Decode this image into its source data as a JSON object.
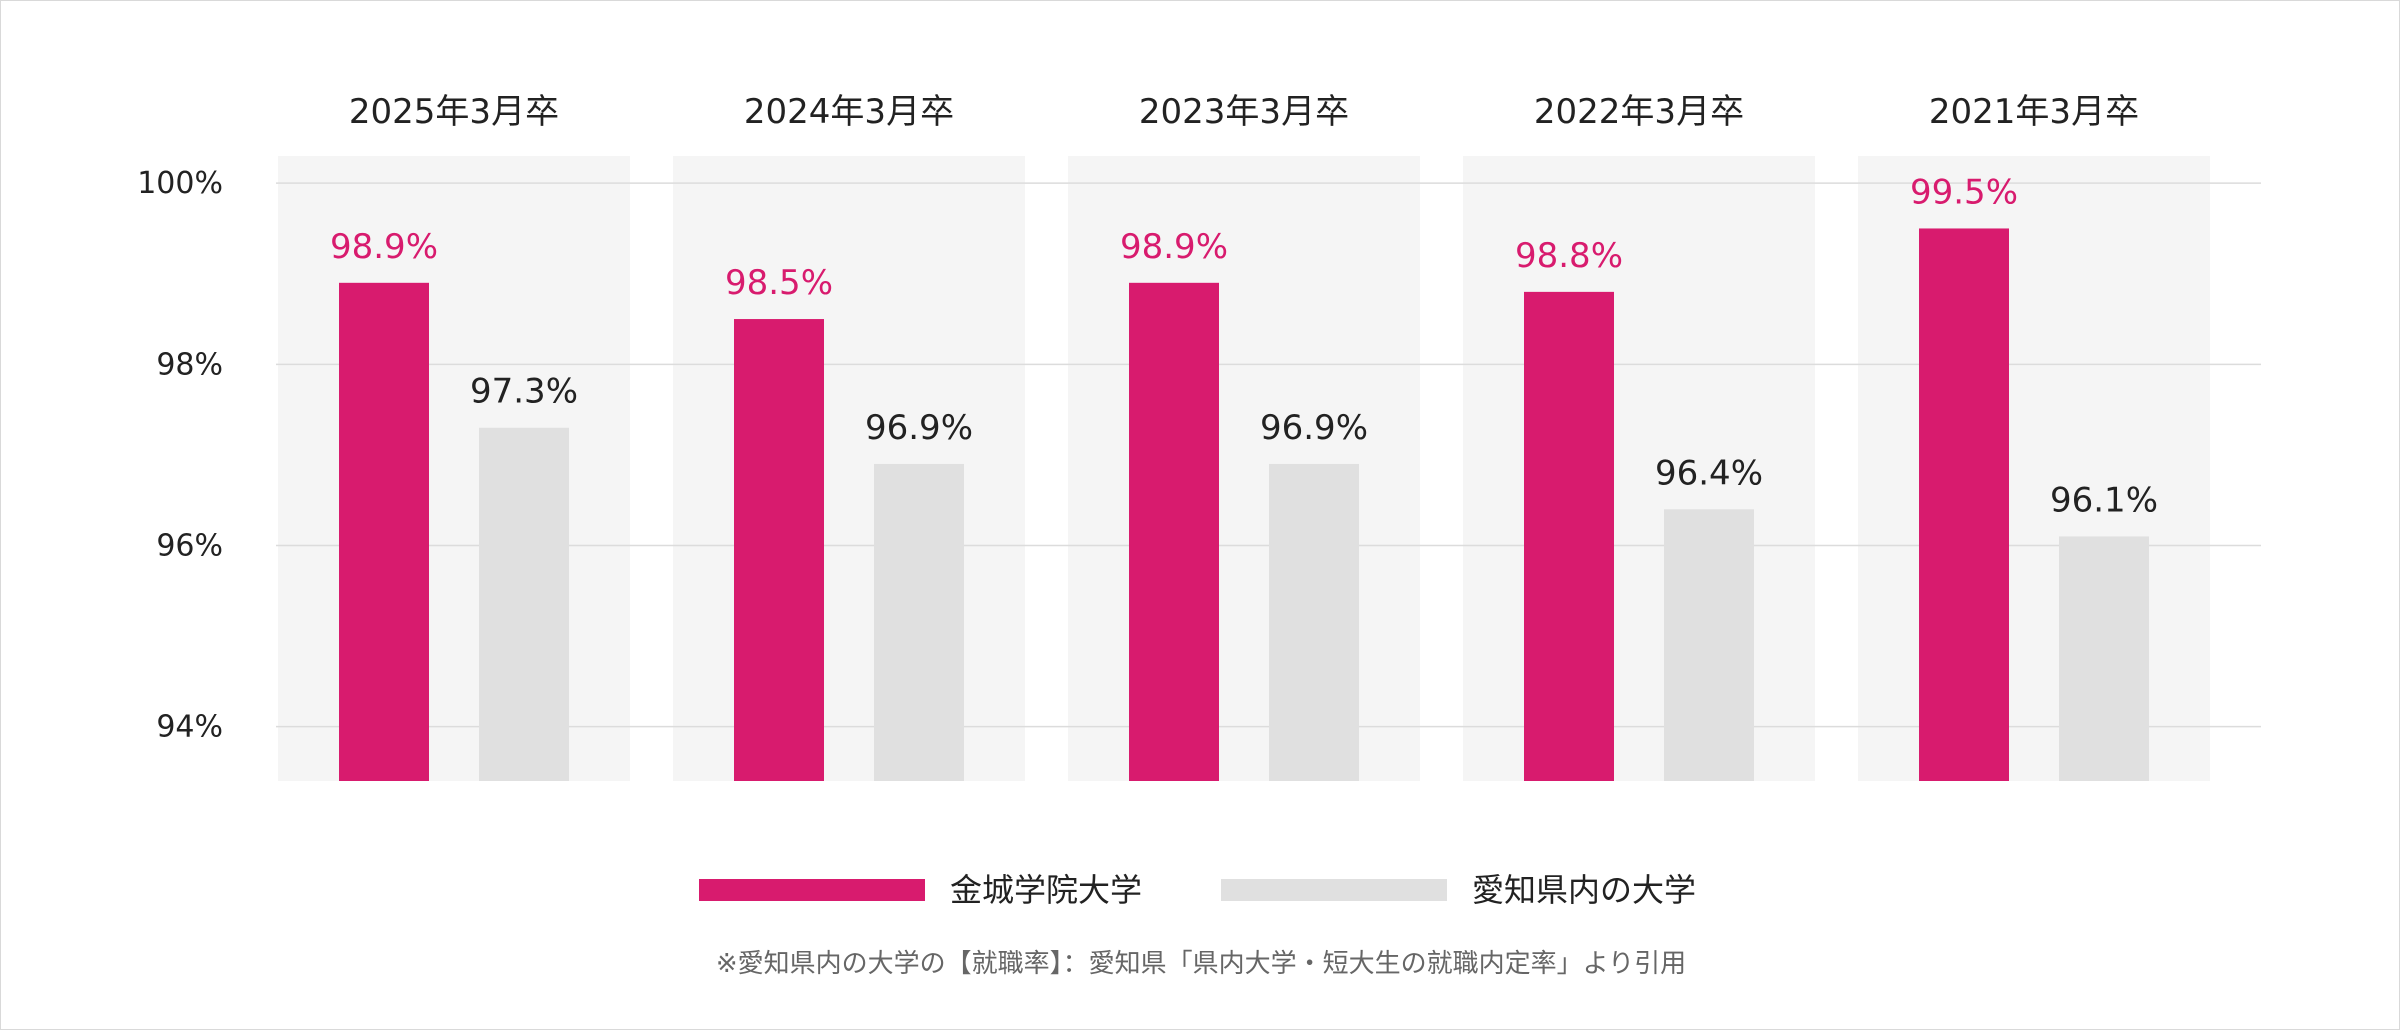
{
  "chart_data": {
    "type": "bar",
    "categories": [
      "2025年3月卒",
      "2024年3月卒",
      "2023年3月卒",
      "2022年3月卒",
      "2021年3月卒"
    ],
    "series": [
      {
        "name": "金城学院大学",
        "color": "#d81b6e",
        "label_color": "#d81b6e",
        "values": [
          98.9,
          98.5,
          98.9,
          98.8,
          99.5
        ],
        "labels": [
          "98.9%",
          "98.5%",
          "98.9%",
          "98.8%",
          "99.5%"
        ]
      },
      {
        "name": "愛知県内の大学",
        "color": "#e0e0e0",
        "label_color": "#222222",
        "values": [
          97.3,
          96.9,
          96.9,
          96.4,
          96.1
        ],
        "labels": [
          "97.3%",
          "96.9%",
          "96.9%",
          "96.4%",
          "96.1%"
        ]
      }
    ],
    "y_ticks": [
      100,
      98,
      96,
      94
    ],
    "y_tick_labels": [
      "100%",
      "98%",
      "96%",
      "94%"
    ],
    "ylim": [
      93.4,
      100.3
    ],
    "grid": true,
    "legend_position": "bottom-center",
    "footnote": "※愛知県内の大学の【就職率】：愛知県「県内大学・短大生の就職内定率」より引用"
  }
}
